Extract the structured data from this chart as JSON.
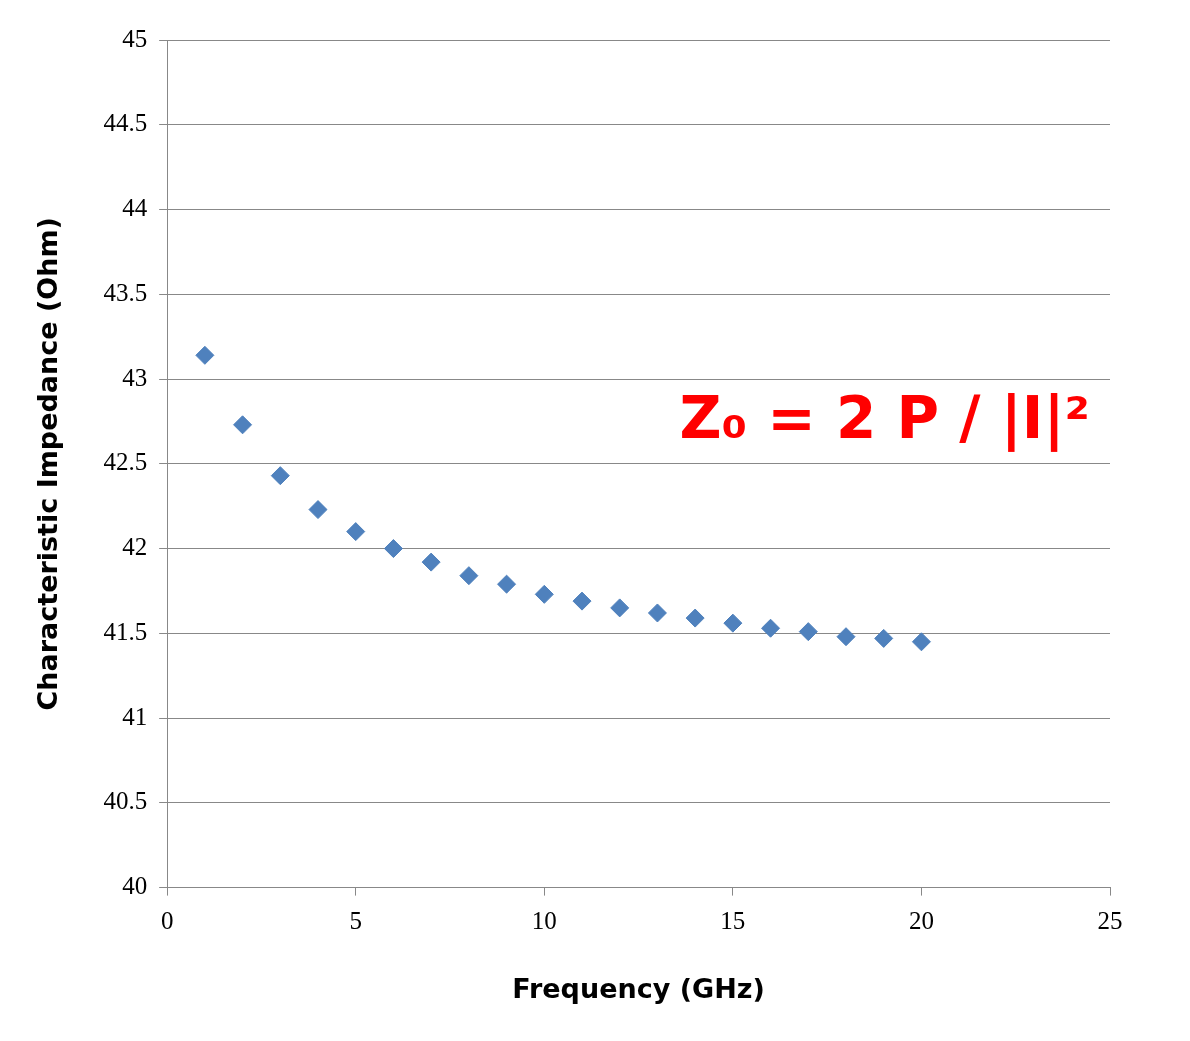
{
  "chart_data": {
    "type": "scatter",
    "xlabel": "Frequency (GHz)",
    "ylabel": "Characteristic Impedance (Ohm)",
    "annotations": [
      "Z₀ = 2 P / |I|²"
    ],
    "x": [
      1,
      2,
      3,
      4,
      5,
      6,
      7,
      8,
      9,
      10,
      11,
      12,
      13,
      14,
      15,
      16,
      17,
      18,
      19,
      20
    ],
    "series": [
      {
        "color": "#4f81bd",
        "values": [
          43.14,
          42.73,
          42.43,
          42.23,
          42.1,
          42.0,
          41.92,
          41.84,
          41.79,
          41.73,
          41.69,
          41.65,
          41.62,
          41.59,
          41.56,
          41.53,
          41.51,
          41.48,
          41.47,
          41.45
        ]
      }
    ],
    "xlim": [
      0,
      25
    ],
    "xticks": [
      0,
      5,
      10,
      15,
      20,
      25
    ],
    "ylim": [
      40,
      45
    ],
    "yticks": [
      40,
      40.5,
      41,
      41.5,
      42,
      42.5,
      43,
      43.5,
      44,
      44.5,
      45
    ],
    "grid": "y",
    "marker": "diamond",
    "legend": false
  }
}
